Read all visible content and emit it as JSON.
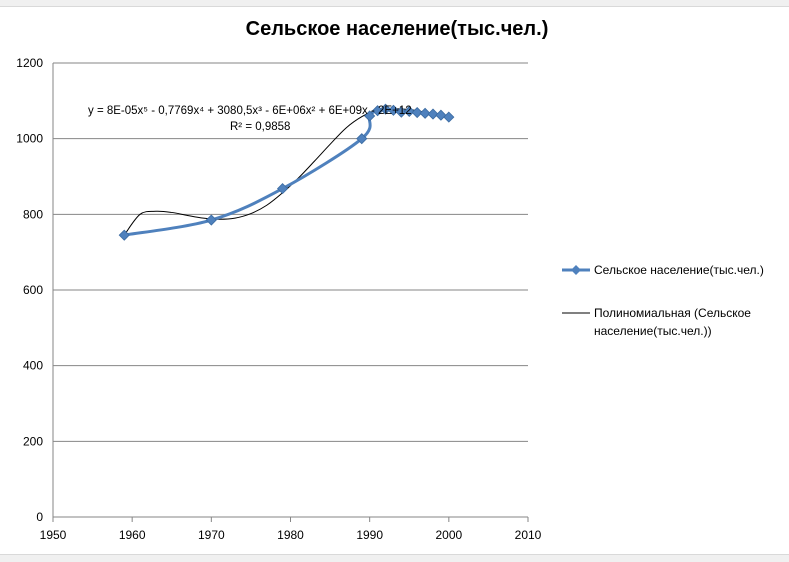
{
  "chart_data": {
    "type": "line",
    "title": "Сельское население(тыс.чел.)",
    "xlabel": "",
    "ylabel": "",
    "xlim": [
      1950,
      2010
    ],
    "ylim": [
      0,
      1200
    ],
    "xticks": [
      1950,
      1960,
      1970,
      1980,
      1990,
      2000,
      2010
    ],
    "yticks": [
      0,
      200,
      400,
      600,
      800,
      1000,
      1200
    ],
    "grid": "horizontal",
    "legend_position": "right",
    "series": [
      {
        "name": "Сельское население(тыс.чел.)",
        "color": "#4f81bd",
        "marker": "diamond",
        "x": [
          1959,
          1970,
          1979,
          1989,
          1990,
          1991,
          1992,
          1993,
          1994,
          1995,
          1996,
          1997,
          1998,
          1999,
          2000
        ],
        "y": [
          745,
          785,
          868,
          1000,
          1060,
          1074,
          1078,
          1075,
          1070,
          1072,
          1069,
          1067,
          1065,
          1062,
          1057
        ]
      }
    ],
    "trendline": {
      "name": "Полиномиальная (Сельское население(тыс.чел.))",
      "type": "polynomial",
      "order": 5,
      "color": "#000000",
      "equation": "y = 8E-05x⁵ - 0,7769x⁴ + 3080,5x³ - 6E+06x² + 6E+09x - 2E+12",
      "r_squared": "R² = 0,9858",
      "curve_x": [
        1959,
        1961,
        1963,
        1965,
        1967,
        1969,
        1971,
        1973,
        1975,
        1977,
        1979,
        1981,
        1983,
        1985,
        1987,
        1989,
        1991,
        1993,
        1995,
        1997,
        2000
      ],
      "curve_y": [
        745,
        800,
        808,
        805,
        797,
        790,
        787,
        790,
        802,
        824,
        857,
        896,
        940,
        985,
        1028,
        1058,
        1076,
        1079,
        1077,
        1070,
        1057
      ]
    }
  }
}
